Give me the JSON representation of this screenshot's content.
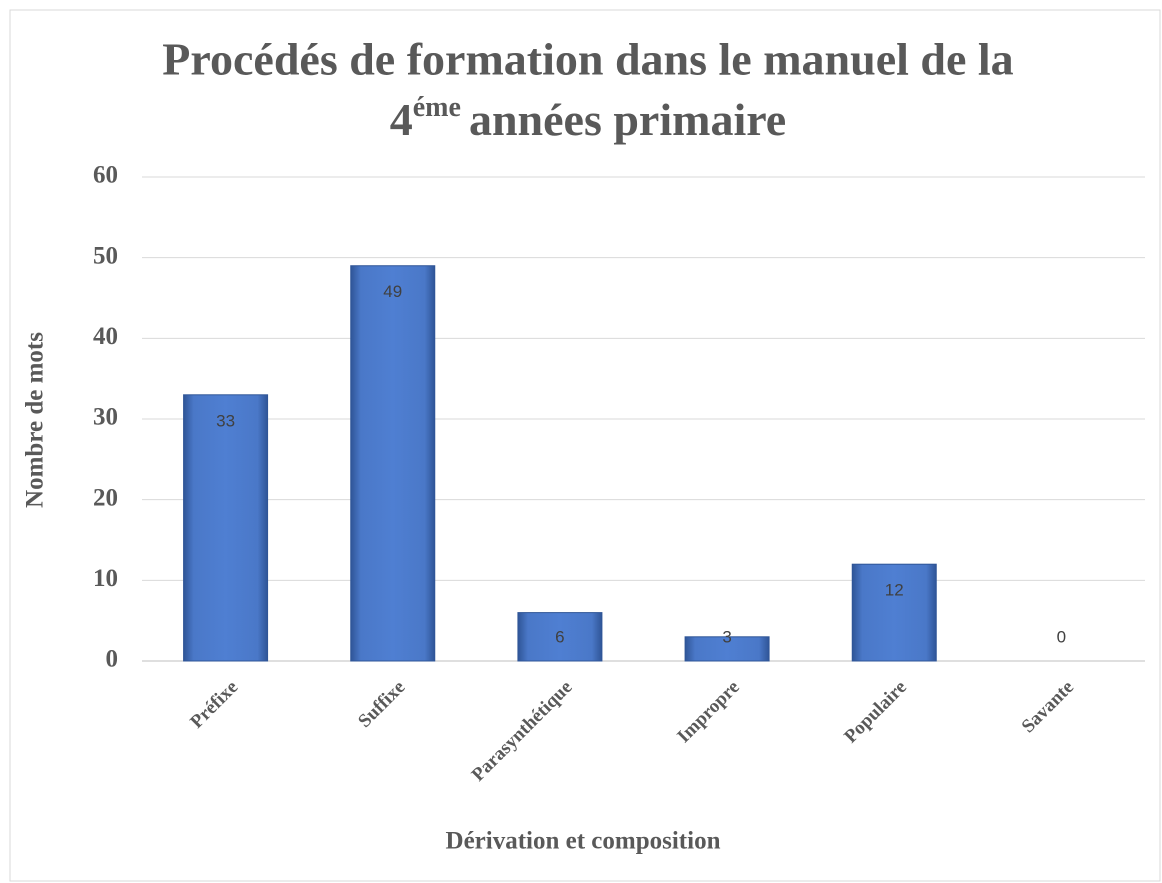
{
  "chart_data": {
    "type": "bar",
    "title": {
      "line1": "Procédés de formation dans le manuel de la",
      "line2_start": "4",
      "line2_superscript": "éme",
      "line2_end": "années primaire"
    },
    "x_label": "Dérivation et composition",
    "y_label": "Nombre de mots",
    "categories": [
      "Préfixe",
      "Suffixe",
      "Parasynthétique",
      "Impropre",
      "Populaire",
      "Savante"
    ],
    "values": [
      33,
      49,
      6,
      3,
      12,
      0
    ],
    "color": "#4472c4",
    "ylim": [
      0,
      60
    ],
    "yticks": [
      0,
      10,
      20,
      30,
      40,
      50,
      60
    ],
    "grid": true
  }
}
